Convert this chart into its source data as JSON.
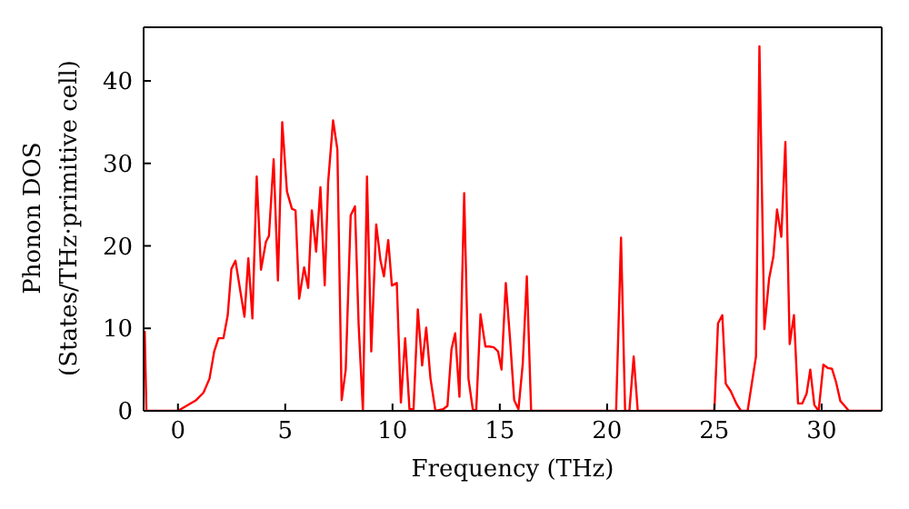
{
  "chart_data": {
    "type": "line",
    "xlabel": "Frequency (THz)",
    "ylabel": "Phonon DOS\n(States/THz·primitive cell)",
    "x": [
      -1.55,
      -1.47,
      0,
      0.85,
      1.19,
      1.47,
      1.69,
      1.89,
      2.12,
      2.32,
      2.49,
      2.68,
      3.1,
      3.28,
      3.47,
      3.67,
      3.87,
      4.1,
      4.24,
      4.46,
      4.66,
      4.86,
      5.08,
      5.31,
      5.48,
      5.65,
      5.88,
      6.07,
      6.24,
      6.44,
      6.64,
      6.84,
      7.0,
      7.23,
      7.43,
      7.63,
      7.82,
      8.05,
      8.25,
      8.42,
      8.62,
      8.81,
      9.01,
      9.24,
      9.44,
      9.6,
      9.8,
      9.97,
      10.2,
      10.39,
      10.59,
      10.79,
      10.98,
      11.18,
      11.38,
      11.57,
      11.77,
      12.0,
      12.36,
      12.56,
      12.75,
      12.92,
      13.12,
      13.34,
      13.54,
      13.74,
      13.9,
      14.1,
      14.33,
      14.52,
      14.72,
      14.92,
      15.08,
      15.28,
      15.48,
      15.67,
      15.87,
      16.07,
      16.26,
      16.46,
      20.42,
      20.65,
      20.84,
      21.04,
      21.24,
      21.43,
      25.0,
      25.17,
      25.37,
      25.53,
      25.76,
      26.04,
      26.24,
      26.55,
      26.94,
      27.1,
      27.33,
      27.55,
      27.75,
      27.92,
      28.12,
      28.31,
      28.51,
      28.71,
      28.9,
      29.1,
      29.3,
      29.47,
      29.66,
      29.86,
      30.08,
      30.28,
      30.48,
      30.67,
      30.87,
      31.07,
      31.27,
      32.8
    ],
    "series": [
      {
        "color": "#ff0000",
        "values": [
          9.7,
          0,
          0,
          1.3,
          2.2,
          3.9,
          7.2,
          8.8,
          8.8,
          11.6,
          17.2,
          18.2,
          11.4,
          18.5,
          11.2,
          28.4,
          17.1,
          20.5,
          21.2,
          30.5,
          15.8,
          35.0,
          26.6,
          24.5,
          24.3,
          13.6,
          17.4,
          14.9,
          24.3,
          19.3,
          27.1,
          15.2,
          27.7,
          35.2,
          31.7,
          1.3,
          5.0,
          23.7,
          24.8,
          10.5,
          0,
          28.4,
          7.2,
          22.6,
          18.2,
          16.3,
          20.7,
          15.2,
          15.5,
          1.0,
          8.8,
          0.2,
          0.2,
          12.3,
          5.5,
          10.1,
          3.9,
          0,
          0.2,
          0.6,
          7.5,
          9.4,
          1.7,
          26.4,
          3.9,
          0.2,
          0,
          11.7,
          7.8,
          7.8,
          7.7,
          7.2,
          5.0,
          15.5,
          8.6,
          1.3,
          0.2,
          5.7,
          16.3,
          0,
          0,
          21.0,
          0,
          0,
          6.6,
          0,
          0,
          10.6,
          11.6,
          3.3,
          2.4,
          0.8,
          0,
          0,
          6.6,
          44.2,
          9.9,
          16.0,
          18.7,
          24.4,
          21.1,
          32.6,
          8.1,
          11.6,
          0.9,
          0.9,
          2.1,
          5.0,
          0.7,
          0,
          5.6,
          5.2,
          5.1,
          3.5,
          1.2,
          0.6,
          0,
          0
        ]
      }
    ],
    "xlim": [
      -1.6,
      32.8
    ],
    "xticks": [
      0,
      5,
      10,
      15,
      20,
      25,
      30
    ],
    "ylim": [
      0,
      46.5
    ],
    "yticks": [
      0,
      10,
      20,
      30,
      40
    ],
    "grid": false,
    "legend": false,
    "marker": "none",
    "line_style": "solid"
  }
}
